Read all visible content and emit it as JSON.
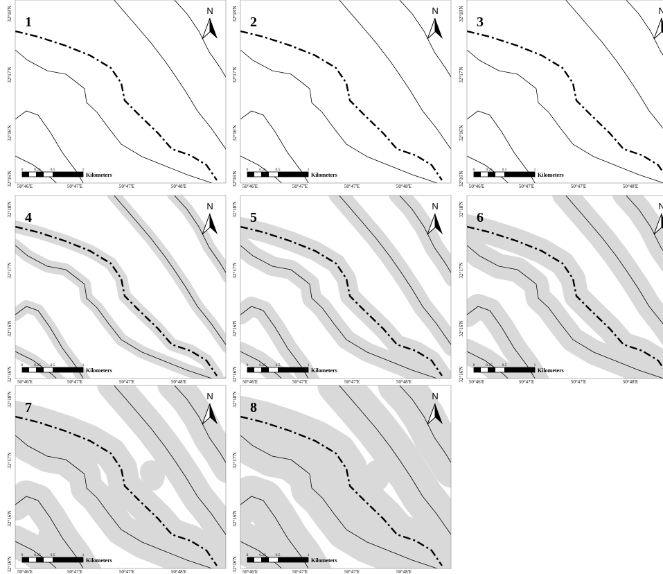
{
  "north_label": "N",
  "scale": {
    "ticks": [
      "0",
      "0.25",
      "0.5",
      "1"
    ],
    "unit": "Kilometers"
  },
  "lat_labels": [
    "32°18'N",
    "32°17'N",
    "32°16'N",
    "32°16'N"
  ],
  "lon_labels": [
    "50°46'E",
    "50°47'E",
    "50°47'E",
    "50°48'E"
  ],
  "panels": [
    {
      "number": "1",
      "buffer_level": 0
    },
    {
      "number": "2",
      "buffer_level": 0
    },
    {
      "number": "3",
      "buffer_level": 1
    },
    {
      "number": "4",
      "buffer_level": 2
    },
    {
      "number": "5",
      "buffer_level": 3
    },
    {
      "number": "6",
      "buffer_level": 4
    },
    {
      "number": "7",
      "buffer_level": 5
    },
    {
      "number": "8",
      "buffer_level": 6
    }
  ],
  "colors": {
    "buffer": "#d9d9d9",
    "line": "#000000",
    "border": "#888888"
  },
  "icons": {
    "north_arrow": "north-arrow-icon"
  }
}
